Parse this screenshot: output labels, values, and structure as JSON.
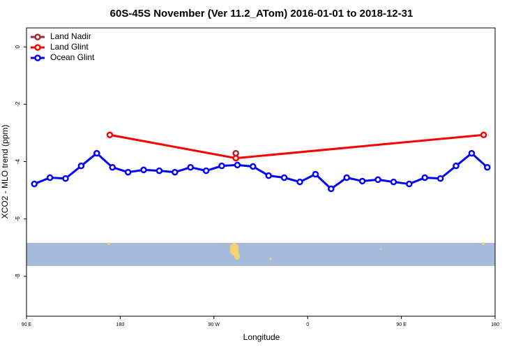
{
  "chart_data": {
    "type": "line",
    "title": "60S-45S November (Ver 11.2_ATom)   2016-01-01 to 2018-12-31",
    "x_label": "Longitude",
    "y_label": "XCO2 - MLO trend (ppm)",
    "xlim": [
      90,
      540
    ],
    "xticks": [
      {
        "value": 90,
        "label": "90 E"
      },
      180,
      {
        "value": 270,
        "label": "90 W"
      },
      {
        "value": 360,
        "label": "0"
      },
      {
        "value": 450,
        "label": "90 E"
      },
      {
        "value": 540,
        "label": "180"
      }
    ],
    "ylim": [
      -9.39,
      0.66
    ],
    "yticks": [
      0,
      -2,
      -4,
      -6,
      -8
    ],
    "legend": "top-left",
    "series": [
      {
        "name": "Land Nadir",
        "color": "#a52a2a",
        "x": [
          291
        ],
        "values": [
          -3.71
        ]
      },
      {
        "name": "Land Glint",
        "color": "#ff0000",
        "x": [
          170,
          291,
          529
        ],
        "values": [
          -3.07,
          -3.88,
          -3.07
        ]
      },
      {
        "name": "Ocean Glint",
        "color": "#0000ff",
        "x": [
          97.5,
          112.5,
          127.5,
          142.5,
          157.5,
          172.5,
          187.5,
          202.5,
          217.5,
          232.5,
          247.5,
          262.5,
          277.5,
          292.5,
          307.5,
          322.5,
          337.5,
          352.5,
          367.5,
          382.5,
          397.5,
          412.5,
          427.5,
          442.5,
          457.5,
          472.5,
          487.5,
          502.5,
          517.5,
          532.5
        ],
        "values": [
          -4.78,
          -4.56,
          -4.59,
          -4.15,
          -3.71,
          -4.2,
          -4.37,
          -4.29,
          -4.32,
          -4.37,
          -4.2,
          -4.32,
          -4.15,
          -4.12,
          -4.17,
          -4.49,
          -4.56,
          -4.71,
          -4.44,
          -4.95,
          -4.56,
          -4.68,
          -4.63,
          -4.71,
          -4.78,
          -4.56,
          -4.59,
          -4.15,
          -3.71,
          -4.2
        ]
      }
    ]
  }
}
